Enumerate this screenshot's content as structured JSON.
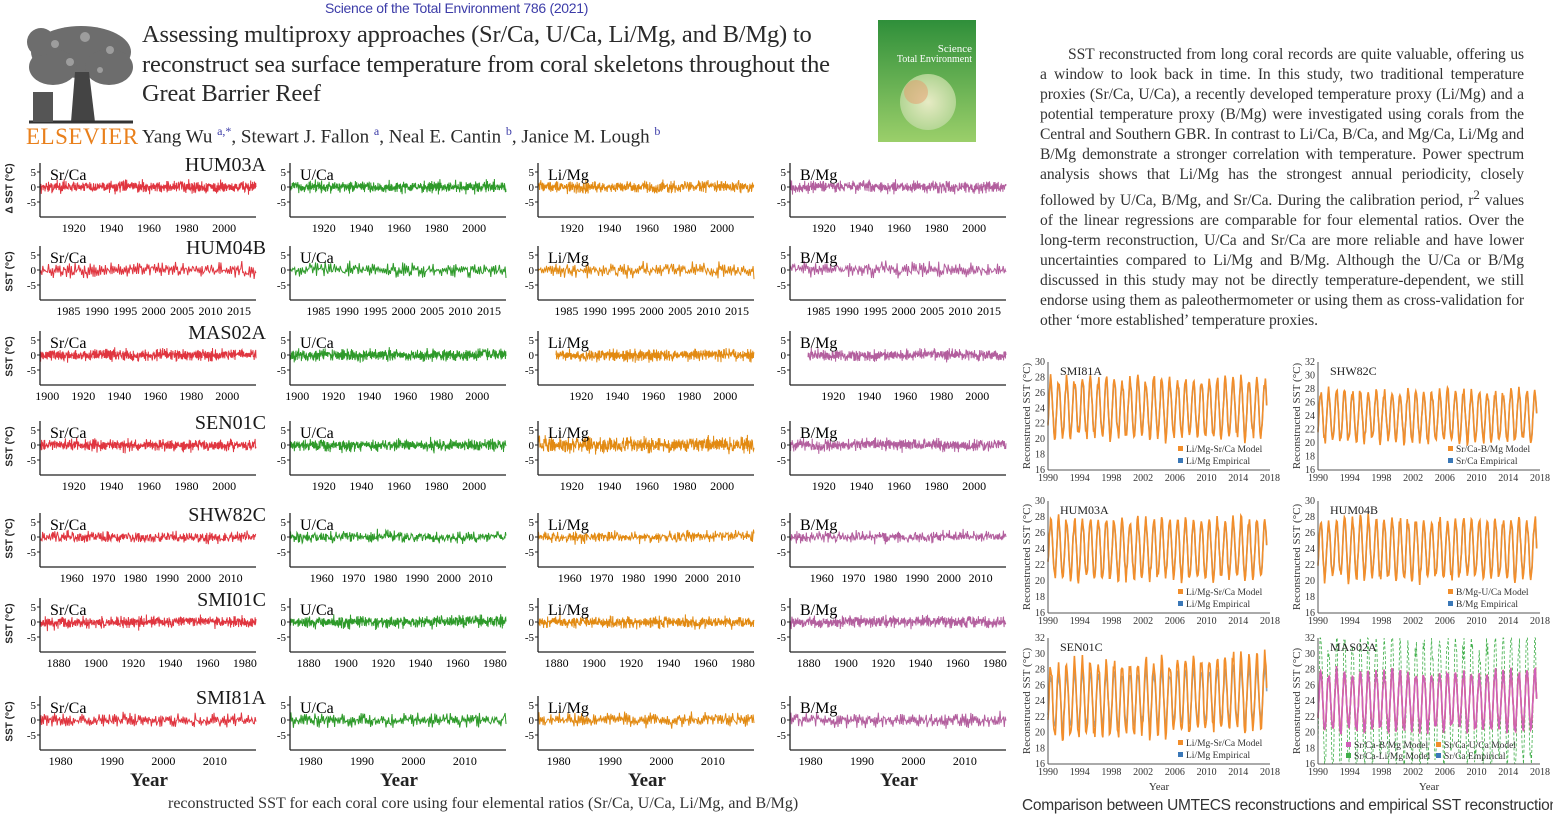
{
  "header": {
    "journal": "Science of the Total Environment 786 (2021)",
    "title_lines": [
      "Assessing multiproxy approaches (Sr/Ca, U/Ca, Li/Mg, and B/Mg) to",
      "reconstruct sea surface temperature from coral skeletons throughout the",
      "Great Barrier Reef"
    ],
    "authors": [
      {
        "name": "Yang Wu",
        "aff": "a,*"
      },
      {
        "name": "Stewart J. Fallon",
        "aff": "a"
      },
      {
        "name": "Neal E. Cantin",
        "aff": "b"
      },
      {
        "name": "Janice M. Lough",
        "aff": "b"
      }
    ],
    "publisher": "ELSEVIER",
    "cover_title_1": "Science",
    "cover_title_2": "Total Environment",
    "cover_color": "#3f9a3a"
  },
  "abstract": {
    "before_sup": "SST reconstructed from long coral records are quite valuable, offering us a window to look back in time. In this study, two traditional temperature proxies (Sr/Ca, U/Ca), a recently developed temperature proxy (Li/Mg) and a potential temperature proxy (B/Mg) were investigated using corals from the Central and Southern GBR. In contrast to Li/Ca, B/Ca, and Mg/Ca, Li/Mg and B/Mg demonstrate a stronger correlation with temperature. Power spectrum analysis shows that Li/Mg has the strongest annual periodicity, closely followed by U/Ca, B/Mg, and Sr/Ca. During the calibration period, r",
    "sup": "2",
    "after_sup": " values of the linear regressions are comparable for four elemental ratios. Over the long-term reconstruction, U/Ca and Sr/Ca are more reliable and have lower uncertainties compared to Li/Mg and B/Mg. Although the U/Ca or B/Mg discussed in this study may not be directly temperature-dependent, we still endorse using them as paleothermometer or using them as cross-validation for other ‘more established’ temperature proxies."
  },
  "left_figure": {
    "ylabel_first": "Δ SST (°C)",
    "ylabel": "SST (°C)",
    "xlabel": "Year",
    "y_ticks": [
      "5",
      "0",
      "-5"
    ],
    "ylim": [
      -10,
      8
    ],
    "proxies": [
      {
        "name": "Sr/Ca",
        "color": "#e0353f"
      },
      {
        "name": "U/Ca",
        "color": "#2e9a2a"
      },
      {
        "name": "Li/Mg",
        "color": "#e28a12"
      },
      {
        "name": "B/Mg",
        "color": "#b35f9e"
      }
    ],
    "cores": [
      {
        "name": "HUM03A",
        "xlim": [
          1902,
          2017
        ],
        "x_ticks": [
          [
            "1920",
            "1940",
            "1960",
            "1980",
            "2000"
          ],
          [
            "1920",
            "1940",
            "1960",
            "1980",
            "2000"
          ],
          [
            "1920",
            "1940",
            "1960",
            "1980",
            "2000"
          ],
          [
            "1920",
            "1940",
            "1960",
            "1980",
            "2000"
          ]
        ]
      },
      {
        "name": "HUM04B",
        "xlim": [
          1980,
          2018
        ],
        "x_ticks": [
          [
            "1985",
            "1990",
            "1995",
            "2000",
            "2005",
            "2010",
            "2015"
          ],
          [
            "1985",
            "1990",
            "1995",
            "2000",
            "2005",
            "2010",
            "2015"
          ],
          [
            "1985",
            "1990",
            "1995",
            "2000",
            "2005",
            "2010",
            "2015"
          ],
          [
            "1985",
            "1990",
            "1995",
            "2000",
            "2005",
            "2010",
            "2015"
          ]
        ]
      },
      {
        "name": "MAS02A",
        "xlim": [
          1896,
          2016
        ],
        "x_ticks": [
          [
            "1900",
            "1920",
            "1940",
            "1960",
            "1980",
            "2000"
          ],
          [
            "1900",
            "1920",
            "1940",
            "1960",
            "1980",
            "2000"
          ],
          [
            "1920",
            "1940",
            "1960",
            "1980",
            "2000"
          ],
          [
            "1920",
            "1940",
            "1960",
            "1980",
            "2000"
          ]
        ]
      },
      {
        "name": "SEN01C",
        "xlim": [
          1902,
          2017
        ],
        "x_ticks": [
          [
            "1920",
            "1940",
            "1960",
            "1980",
            "2000"
          ],
          [
            "1920",
            "1940",
            "1960",
            "1980",
            "2000"
          ],
          [
            "1920",
            "1940",
            "1960",
            "1980",
            "2000"
          ],
          [
            "1920",
            "1940",
            "1960",
            "1980",
            "2000"
          ]
        ]
      },
      {
        "name": "SHW82C",
        "xlim": [
          1950,
          2018
        ],
        "x_ticks": [
          [
            "1960",
            "1970",
            "1980",
            "1990",
            "2000",
            "2010"
          ],
          [
            "1960",
            "1970",
            "1980",
            "1990",
            "2000",
            "2010"
          ],
          [
            "1960",
            "1970",
            "1980",
            "1990",
            "2000",
            "2010"
          ],
          [
            "1960",
            "1970",
            "1980",
            "1990",
            "2000",
            "2010"
          ]
        ]
      },
      {
        "name": "SMI01C",
        "xlim": [
          1870,
          1986
        ],
        "x_ticks": [
          [
            "1880",
            "1900",
            "1920",
            "1940",
            "1960",
            "1980"
          ],
          [
            "1880",
            "1900",
            "1920",
            "1940",
            "1960",
            "1980"
          ],
          [
            "1880",
            "1900",
            "1920",
            "1940",
            "1960",
            "1980"
          ],
          [
            "1880",
            "1900",
            "1920",
            "1940",
            "1960",
            "1980"
          ]
        ]
      },
      {
        "name": "SMI81A",
        "xlim": [
          1976,
          2018
        ],
        "x_ticks": [
          [
            "1980",
            "1990",
            "2000",
            "2010"
          ],
          [
            "1980",
            "1990",
            "2000",
            "2010"
          ],
          [
            "1980",
            "1990",
            "2000",
            "2010"
          ],
          [
            "1980",
            "1990",
            "2000",
            "2010"
          ]
        ]
      }
    ],
    "caption": "reconstructed SST for each coral core using four elemental ratios (Sr/Ca, U/Ca, Li/Mg, and B/Mg)"
  },
  "right_figure": {
    "ylabel": "Reconstructed SST (°C)",
    "xlabel": "Year",
    "xlim": [
      1990,
      2018
    ],
    "x_ticks": [
      "1990",
      "1994",
      "1998",
      "2002",
      "2006",
      "2010",
      "2014",
      "2018"
    ],
    "panels": [
      {
        "core": "SMI81A",
        "ylim": [
          16,
          30
        ],
        "y_ticks": [
          "16",
          "18",
          "20",
          "22",
          "24",
          "26",
          "28",
          "30"
        ],
        "legend": [
          {
            "label": "Li/Mg-Sr/Ca Model",
            "color": "#f28e2b"
          },
          {
            "label": "Li/Mg Empirical",
            "color": "#3a78b8"
          }
        ]
      },
      {
        "core": "SHW82C",
        "ylim": [
          16,
          32
        ],
        "y_ticks": [
          "16",
          "18",
          "20",
          "22",
          "24",
          "26",
          "28",
          "30",
          "32"
        ],
        "legend": [
          {
            "label": "Sr/Ca-B/Mg Model",
            "color": "#f28e2b"
          },
          {
            "label": "Sr/Ca Empirical",
            "color": "#3a78b8"
          }
        ]
      },
      {
        "core": "HUM03A",
        "ylim": [
          16,
          30
        ],
        "y_ticks": [
          "16",
          "18",
          "20",
          "22",
          "24",
          "26",
          "28",
          "30"
        ],
        "legend": [
          {
            "label": "Li/Mg-Sr/Ca Model",
            "color": "#f28e2b"
          },
          {
            "label": "Li/Mg Empirical",
            "color": "#3a78b8"
          }
        ]
      },
      {
        "core": "HUM04B",
        "ylim": [
          16,
          30
        ],
        "y_ticks": [
          "16",
          "18",
          "20",
          "22",
          "24",
          "26",
          "28",
          "30"
        ],
        "legend": [
          {
            "label": "B/Mg-U/Ca Model",
            "color": "#f28e2b"
          },
          {
            "label": "B/Mg Empirical",
            "color": "#3a78b8"
          }
        ]
      },
      {
        "core": "SEN01C",
        "ylim": [
          16,
          32
        ],
        "y_ticks": [
          "16",
          "18",
          "20",
          "22",
          "24",
          "26",
          "28",
          "30",
          "32"
        ],
        "legend": [
          {
            "label": "Li/Mg-Sr/Ca Model",
            "color": "#f28e2b"
          },
          {
            "label": "Li/Mg Empirical",
            "color": "#3a78b8"
          }
        ]
      },
      {
        "core": "MAS02A",
        "ylim": [
          16,
          32
        ],
        "y_ticks": [
          "16",
          "18",
          "20",
          "22",
          "24",
          "26",
          "28",
          "30",
          "32"
        ],
        "legend": [
          {
            "label": "Sr/Ca-B/Mg Model",
            "color": "#d05fb8"
          },
          {
            "label": "Sr/Ca-U/Ca Model",
            "color": "#f28e2b"
          },
          {
            "label": "Sr/Ca-Li/Mg Model",
            "color": "#3fae49",
            "dashed": true
          },
          {
            "label": "Sr/Ca Empirical",
            "color": "#3a78b8"
          }
        ]
      }
    ],
    "caption": "Comparison between UMTECS reconstructions and empirical SST reconstructions"
  }
}
